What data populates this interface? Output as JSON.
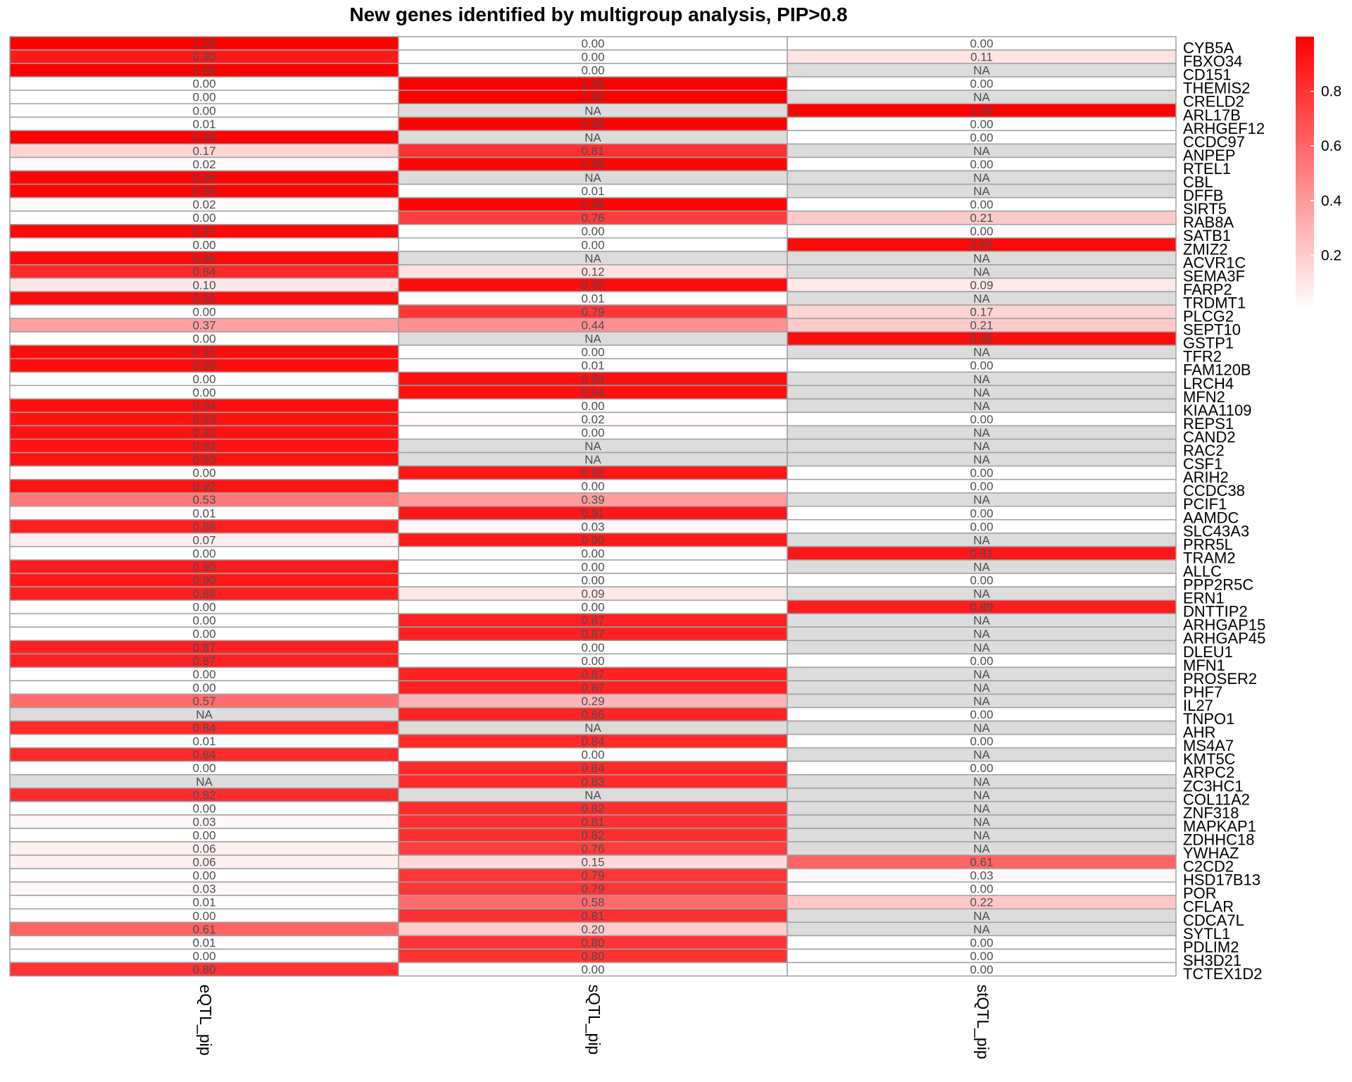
{
  "chart_data": {
    "type": "heatmap",
    "title": "New genes identified by multigroup analysis, PIP>0.8",
    "columns": [
      "eQTL_pip",
      "sQTL_pip",
      "stQTL_pip"
    ],
    "rows": [
      "CYB5A",
      "FBXO34",
      "CD151",
      "THEMIS2",
      "CRELD2",
      "ARL17B",
      "ARHGEF12",
      "CCDC97",
      "ANPEP",
      "RTEL1",
      "CBL",
      "DFFB",
      "SIRT5",
      "RAB8A",
      "SATB1",
      "ZMIZ2",
      "ACVR1C",
      "SEMA3F",
      "FARP2",
      "TRDMT1",
      "PLCG2",
      "SEPT10",
      "GSTP1",
      "TFR2",
      "FAM120B",
      "LRCH4",
      "MFN2",
      "KIAA1109",
      "REPS1",
      "CAND2",
      "RAC2",
      "CSF1",
      "ARIH2",
      "CCDC38",
      "PCIF1",
      "AAMDC",
      "SLC43A3",
      "PRR5L",
      "TRAM2",
      "ALLC",
      "PPP2R5C",
      "ERN1",
      "DNTTIP2",
      "ARHGAP15",
      "ARHGAP45",
      "DLEU1",
      "MFN1",
      "PROSER2",
      "PHF7",
      "IL27",
      "TNPO1",
      "AHR",
      "MS4A7",
      "KMT5C",
      "ARPC2",
      "ZC3HC1",
      "COL11A2",
      "ZNF318",
      "MAPKAP1",
      "ZDHHC18",
      "YWHAZ",
      "C2CD2",
      "HSD17B13",
      "POR",
      "CFLAR",
      "CDCA7L",
      "SYTL1",
      "PDLIM2",
      "SH3D21",
      "TCTEX1D2"
    ],
    "values": [
      [
        "1.00",
        "0.00",
        "0.00"
      ],
      [
        "0.90",
        "0.00",
        "0.11"
      ],
      [
        "1.00",
        "0.00",
        "NA"
      ],
      [
        "0.00",
        "1.00",
        "0.00"
      ],
      [
        "0.00",
        "1.00",
        "NA"
      ],
      [
        "0.00",
        "NA",
        "1.00"
      ],
      [
        "0.01",
        "0.99",
        "0.00"
      ],
      [
        "0.99",
        "NA",
        "0.00"
      ],
      [
        "0.17",
        "0.81",
        "NA"
      ],
      [
        "0.02",
        "0.98",
        "0.00"
      ],
      [
        "0.98",
        "NA",
        "NA"
      ],
      [
        "0.98",
        "0.01",
        "NA"
      ],
      [
        "0.02",
        "0.98",
        "0.00"
      ],
      [
        "0.00",
        "0.76",
        "0.21"
      ],
      [
        "0.97",
        "0.00",
        "0.00"
      ],
      [
        "0.00",
        "0.00",
        "0.96"
      ],
      [
        "0.96",
        "NA",
        "NA"
      ],
      [
        "0.84",
        "0.12",
        "NA"
      ],
      [
        "0.10",
        "0.95",
        "0.09"
      ],
      [
        "0.95",
        "0.01",
        "NA"
      ],
      [
        "0.00",
        "0.79",
        "0.17"
      ],
      [
        "0.37",
        "0.44",
        "0.21"
      ],
      [
        "0.00",
        "NA",
        "0.95"
      ],
      [
        "0.95",
        "0.00",
        "NA"
      ],
      [
        "0.95",
        "0.01",
        "0.00"
      ],
      [
        "0.00",
        "0.94",
        "NA"
      ],
      [
        "0.00",
        "0.94",
        "NA"
      ],
      [
        "0.94",
        "0.00",
        "NA"
      ],
      [
        "0.93",
        "0.02",
        "0.00"
      ],
      [
        "0.93",
        "0.00",
        "NA"
      ],
      [
        "0.93",
        "NA",
        "NA"
      ],
      [
        "0.93",
        "NA",
        "NA"
      ],
      [
        "0.00",
        "0.92",
        "0.00"
      ],
      [
        "0.92",
        "0.00",
        "0.00"
      ],
      [
        "0.53",
        "0.39",
        "NA"
      ],
      [
        "0.01",
        "0.91",
        "0.00"
      ],
      [
        "0.88",
        "0.03",
        "0.00"
      ],
      [
        "0.07",
        "0.90",
        "NA"
      ],
      [
        "0.00",
        "0.00",
        "0.91"
      ],
      [
        "0.90",
        "0.00",
        "NA"
      ],
      [
        "0.90",
        "0.00",
        "0.00"
      ],
      [
        "0.88",
        "0.09",
        "NA"
      ],
      [
        "0.00",
        "0.00",
        "0.89"
      ],
      [
        "0.00",
        "0.87",
        "NA"
      ],
      [
        "0.00",
        "0.87",
        "NA"
      ],
      [
        "0.87",
        "0.00",
        "NA"
      ],
      [
        "0.87",
        "0.00",
        "0.00"
      ],
      [
        "0.00",
        "0.87",
        "NA"
      ],
      [
        "0.00",
        "0.87",
        "NA"
      ],
      [
        "0.57",
        "0.29",
        "NA"
      ],
      [
        "NA",
        "0.86",
        "0.00"
      ],
      [
        "0.84",
        "NA",
        "NA"
      ],
      [
        "0.01",
        "0.84",
        "0.00"
      ],
      [
        "0.84",
        "0.00",
        "NA"
      ],
      [
        "0.00",
        "0.84",
        "0.00"
      ],
      [
        "NA",
        "0.83",
        "NA"
      ],
      [
        "0.82",
        "NA",
        "NA"
      ],
      [
        "0.00",
        "0.82",
        "NA"
      ],
      [
        "0.03",
        "0.81",
        "NA"
      ],
      [
        "0.00",
        "0.82",
        "NA"
      ],
      [
        "0.06",
        "0.76",
        "NA"
      ],
      [
        "0.06",
        "0.15",
        "0.61"
      ],
      [
        "0.00",
        "0.79",
        "0.03"
      ],
      [
        "0.03",
        "0.79",
        "0.00"
      ],
      [
        "0.01",
        "0.58",
        "0.22"
      ],
      [
        "0.00",
        "0.81",
        "NA"
      ],
      [
        "0.61",
        "0.20",
        "NA"
      ],
      [
        "0.01",
        "0.80",
        "0.00"
      ],
      [
        "0.00",
        "0.80",
        "0.00"
      ],
      [
        "0.80",
        "0.00",
        "0.00"
      ]
    ],
    "legend": {
      "ticks": [
        0.2,
        0.4,
        0.6,
        0.8
      ],
      "range": [
        0,
        1
      ],
      "low_color": "#ffffff",
      "high_color": "#ff0000",
      "na_color": "#dcdcdc"
    },
    "colors": {
      "border": "#a0a0a0"
    }
  }
}
